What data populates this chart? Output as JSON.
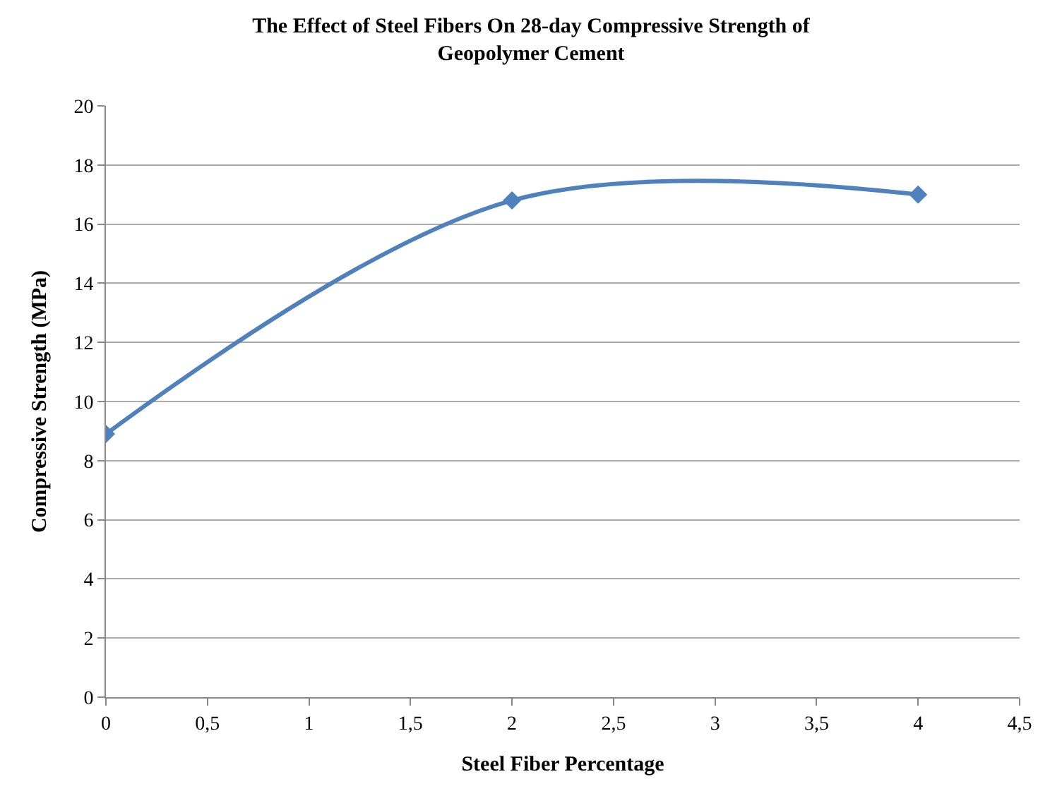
{
  "chart_data": {
    "type": "line",
    "title": "The Effect of Steel Fibers On 28-day Compressive Strength of Geopolymer Cement",
    "xlabel": "Steel Fiber Percentage",
    "ylabel": "Compressive Strength (MPa)",
    "x": [
      0,
      2,
      4
    ],
    "series": [
      {
        "color": "#4f81bd",
        "values": [
          8.9,
          16.8,
          17.0
        ]
      }
    ],
    "xlim": [
      0,
      4.5
    ],
    "ylim": [
      0,
      20
    ],
    "xticks": [
      0,
      {
        "value": 0.5,
        "label": "0,5"
      },
      1,
      {
        "value": 1.5,
        "label": "1,5"
      },
      2,
      {
        "value": 2.5,
        "label": "2,5"
      },
      3,
      {
        "value": 3.5,
        "label": "3,5"
      },
      4,
      {
        "value": 4.5,
        "label": "4,5"
      }
    ],
    "yticks": [
      0,
      2,
      4,
      6,
      8,
      10,
      12,
      14,
      16,
      18,
      20
    ],
    "grid": "y",
    "marker": "diamond",
    "line_style": "solid"
  }
}
